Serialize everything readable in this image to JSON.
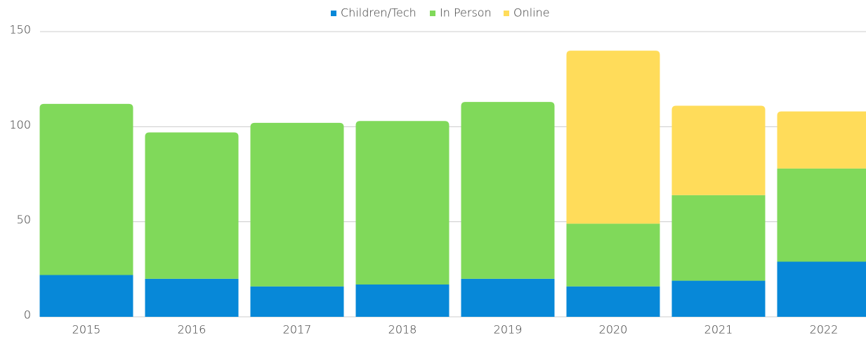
{
  "chart_data": {
    "type": "stacked_bar",
    "categories": [
      "2015",
      "2016",
      "2017",
      "2018",
      "2019",
      "2020",
      "2021",
      "2022"
    ],
    "series": [
      {
        "name": "Children/Tech",
        "color": "#0788d8",
        "values": [
          22,
          20,
          16,
          17,
          20,
          16,
          19,
          29
        ]
      },
      {
        "name": "In Person",
        "color": "#80d95a",
        "values": [
          90,
          77,
          86,
          86,
          93,
          33,
          45,
          49
        ]
      },
      {
        "name": "Online",
        "color": "#ffdc5a",
        "values": [
          0,
          0,
          0,
          0,
          0,
          91,
          47,
          30
        ]
      }
    ],
    "ylim": [
      0,
      150
    ],
    "yticks": [
      0,
      50,
      100,
      150
    ],
    "grid": true,
    "legend": "top"
  }
}
